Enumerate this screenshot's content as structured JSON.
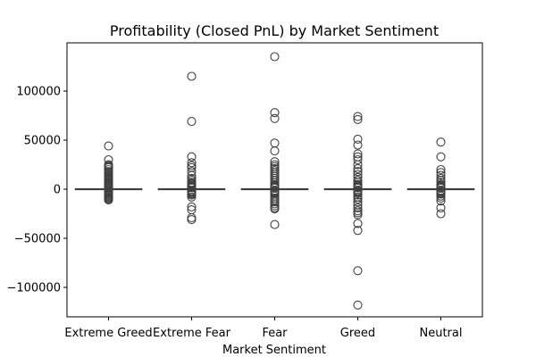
{
  "chart_data": {
    "type": "box",
    "title": "Profitability (Closed PnL) by Market Sentiment",
    "xlabel": "Market Sentiment",
    "ylabel": "",
    "ylim": [
      -130000,
      140000
    ],
    "yticks": [
      {
        "value": 100000,
        "label": "100000"
      },
      {
        "value": 50000,
        "label": "50000"
      },
      {
        "value": 0,
        "label": "0"
      },
      {
        "value": -50000,
        "label": "−50000"
      },
      {
        "value": -100000,
        "label": "−100000"
      }
    ],
    "grid": false,
    "color": "#3f3f3f",
    "categories": [
      "Extreme Greed",
      "Extreme Fear",
      "Fear",
      "Greed",
      "Neutral"
    ],
    "boxes": [
      {
        "category": "Extreme Greed",
        "q1": 0,
        "median": 0,
        "q3": 0,
        "whisker_low": -100,
        "whisker_high": 100,
        "fliers": [
          44000,
          30000,
          25000,
          24000,
          23000,
          22000,
          20000,
          18000,
          17000,
          15000,
          14000,
          13000,
          12000,
          11000,
          10000,
          9000,
          8000,
          7000,
          6000,
          5000,
          4000,
          3000,
          2000,
          1500,
          -1500,
          -2000,
          -3000,
          -4000,
          -5000,
          -6000,
          -7000,
          -8000,
          -9000,
          -10000,
          -11000
        ]
      },
      {
        "category": "Extreme Fear",
        "q1": 0,
        "median": 0,
        "q3": 0,
        "whisker_low": -100,
        "whisker_high": 100,
        "fliers": [
          115000,
          69000,
          33000,
          27000,
          24000,
          22000,
          18000,
          14000,
          11000,
          9000,
          7000,
          6000,
          5000,
          4000,
          3000,
          2000,
          1500,
          -1500,
          -2000,
          -3000,
          -4000,
          -5000,
          -6000,
          -8000,
          -18000,
          -21000,
          -29000,
          -31000
        ]
      },
      {
        "category": "Fear",
        "q1": 0,
        "median": 0,
        "q3": 0,
        "whisker_low": -100,
        "whisker_high": 100,
        "fliers": [
          135000,
          78000,
          72000,
          47000,
          39000,
          28000,
          25000,
          23000,
          21000,
          19000,
          17000,
          15000,
          13000,
          11000,
          9000,
          7000,
          5000,
          4000,
          3000,
          2000,
          1500,
          -1500,
          -2000,
          -3000,
          -4000,
          -5000,
          -7000,
          -9000,
          -11000,
          -13000,
          -15000,
          -17000,
          -19000,
          -20000,
          -36000
        ]
      },
      {
        "category": "Greed",
        "q1": 0,
        "median": 0,
        "q3": 0,
        "whisker_low": -100,
        "whisker_high": 100,
        "fliers": [
          74000,
          71000,
          51000,
          45000,
          36000,
          33000,
          30000,
          25000,
          21000,
          18000,
          15000,
          12000,
          9000,
          7000,
          5000,
          4000,
          3000,
          2000,
          1500,
          -1500,
          -2000,
          -3000,
          -4000,
          -6000,
          -8000,
          -10000,
          -13000,
          -16000,
          -19000,
          -22000,
          -24000,
          -26000,
          -35000,
          -42000,
          -83000,
          -118000
        ]
      },
      {
        "category": "Neutral",
        "q1": 0,
        "median": 0,
        "q3": 0,
        "whisker_low": -100,
        "whisker_high": 100,
        "fliers": [
          48000,
          33000,
          20000,
          17000,
          14000,
          11000,
          9000,
          7000,
          5000,
          4000,
          3000,
          2000,
          1500,
          -1500,
          -2000,
          -3000,
          -4000,
          -5000,
          -7000,
          -9000,
          -12000,
          -19000,
          -25000
        ]
      }
    ]
  }
}
